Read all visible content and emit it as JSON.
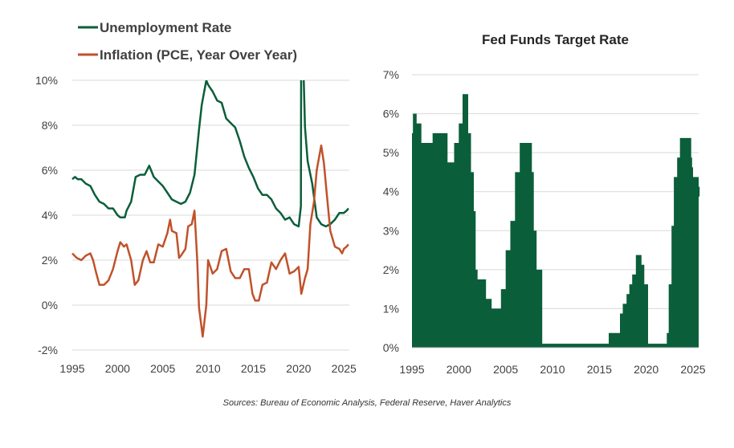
{
  "source_note": "Sources: Bureau of Economic Analysis, Federal Reserve, Haver Analytics",
  "chart_data": [
    {
      "type": "line",
      "title": "",
      "xlabel": "",
      "ylabel": "",
      "xlim": [
        1995,
        2025.6
      ],
      "ylim": [
        -2,
        10
      ],
      "x_ticks": [
        "1995",
        "2000",
        "2005",
        "2010",
        "2015",
        "2020",
        "2025"
      ],
      "y_ticks": [
        "-2%",
        "0%",
        "2%",
        "4%",
        "6%",
        "8%",
        "10%"
      ],
      "legend_position": "top-left",
      "colors": {
        "unemployment": "#0b5e3a",
        "inflation": "#c0522b"
      },
      "series": [
        {
          "name": "Unemployment Rate",
          "key": "unemployment",
          "points": [
            [
              1995.0,
              5.6
            ],
            [
              1995.3,
              5.7
            ],
            [
              1995.6,
              5.6
            ],
            [
              1996.0,
              5.6
            ],
            [
              1996.5,
              5.4
            ],
            [
              1997.0,
              5.3
            ],
            [
              1997.5,
              4.9
            ],
            [
              1998.0,
              4.6
            ],
            [
              1998.5,
              4.5
            ],
            [
              1999.0,
              4.3
            ],
            [
              1999.5,
              4.3
            ],
            [
              2000.0,
              4.0
            ],
            [
              2000.3,
              3.9
            ],
            [
              2000.8,
              3.9
            ],
            [
              2001.0,
              4.2
            ],
            [
              2001.5,
              4.6
            ],
            [
              2002.0,
              5.7
            ],
            [
              2002.5,
              5.8
            ],
            [
              2003.0,
              5.8
            ],
            [
              2003.5,
              6.2
            ],
            [
              2004.0,
              5.7
            ],
            [
              2004.5,
              5.5
            ],
            [
              2005.0,
              5.3
            ],
            [
              2005.5,
              5.0
            ],
            [
              2006.0,
              4.7
            ],
            [
              2006.5,
              4.6
            ],
            [
              2007.0,
              4.5
            ],
            [
              2007.5,
              4.6
            ],
            [
              2008.0,
              5.0
            ],
            [
              2008.5,
              5.8
            ],
            [
              2009.0,
              7.8
            ],
            [
              2009.3,
              8.9
            ],
            [
              2009.8,
              10.0
            ],
            [
              2010.0,
              9.8
            ],
            [
              2010.5,
              9.5
            ],
            [
              2011.0,
              9.1
            ],
            [
              2011.5,
              9.0
            ],
            [
              2012.0,
              8.3
            ],
            [
              2012.5,
              8.1
            ],
            [
              2013.0,
              7.9
            ],
            [
              2013.5,
              7.3
            ],
            [
              2014.0,
              6.6
            ],
            [
              2014.5,
              6.1
            ],
            [
              2015.0,
              5.7
            ],
            [
              2015.5,
              5.2
            ],
            [
              2016.0,
              4.9
            ],
            [
              2016.5,
              4.9
            ],
            [
              2017.0,
              4.7
            ],
            [
              2017.5,
              4.3
            ],
            [
              2018.0,
              4.1
            ],
            [
              2018.5,
              3.8
            ],
            [
              2019.0,
              3.9
            ],
            [
              2019.5,
              3.6
            ],
            [
              2020.0,
              3.5
            ],
            [
              2020.25,
              4.4
            ],
            [
              2020.3,
              14.7
            ],
            [
              2020.5,
              11.0
            ],
            [
              2020.7,
              7.9
            ],
            [
              2021.0,
              6.4
            ],
            [
              2021.5,
              5.4
            ],
            [
              2022.0,
              3.9
            ],
            [
              2022.5,
              3.6
            ],
            [
              2023.0,
              3.5
            ],
            [
              2023.5,
              3.6
            ],
            [
              2024.0,
              3.8
            ],
            [
              2024.5,
              4.1
            ],
            [
              2025.0,
              4.1
            ],
            [
              2025.3,
              4.2
            ],
            [
              2025.5,
              4.3
            ]
          ]
        },
        {
          "name": "Inflation (PCE, Year Over Year)",
          "key": "inflation",
          "points": [
            [
              1995.0,
              2.3
            ],
            [
              1995.5,
              2.1
            ],
            [
              1996.0,
              2.0
            ],
            [
              1996.5,
              2.2
            ],
            [
              1997.0,
              2.3
            ],
            [
              1997.3,
              2.0
            ],
            [
              1997.6,
              1.5
            ],
            [
              1998.0,
              0.9
            ],
            [
              1998.5,
              0.9
            ],
            [
              1999.0,
              1.1
            ],
            [
              1999.5,
              1.6
            ],
            [
              2000.0,
              2.4
            ],
            [
              2000.3,
              2.8
            ],
            [
              2000.7,
              2.6
            ],
            [
              2001.0,
              2.7
            ],
            [
              2001.5,
              2.0
            ],
            [
              2001.9,
              0.9
            ],
            [
              2002.3,
              1.1
            ],
            [
              2002.8,
              2.0
            ],
            [
              2003.2,
              2.4
            ],
            [
              2003.6,
              1.9
            ],
            [
              2004.0,
              1.9
            ],
            [
              2004.5,
              2.7
            ],
            [
              2005.0,
              2.6
            ],
            [
              2005.5,
              3.2
            ],
            [
              2005.8,
              3.8
            ],
            [
              2006.0,
              3.3
            ],
            [
              2006.5,
              3.2
            ],
            [
              2006.8,
              2.1
            ],
            [
              2007.0,
              2.2
            ],
            [
              2007.5,
              2.5
            ],
            [
              2007.8,
              3.5
            ],
            [
              2008.2,
              3.6
            ],
            [
              2008.5,
              4.2
            ],
            [
              2008.8,
              2.0
            ],
            [
              2009.0,
              -0.1
            ],
            [
              2009.4,
              -1.4
            ],
            [
              2009.8,
              0.0
            ],
            [
              2010.0,
              2.0
            ],
            [
              2010.5,
              1.4
            ],
            [
              2011.0,
              1.6
            ],
            [
              2011.5,
              2.4
            ],
            [
              2012.0,
              2.5
            ],
            [
              2012.5,
              1.5
            ],
            [
              2013.0,
              1.2
            ],
            [
              2013.5,
              1.2
            ],
            [
              2014.0,
              1.6
            ],
            [
              2014.5,
              1.6
            ],
            [
              2014.9,
              0.5
            ],
            [
              2015.2,
              0.2
            ],
            [
              2015.6,
              0.2
            ],
            [
              2016.0,
              0.9
            ],
            [
              2016.5,
              1.0
            ],
            [
              2017.0,
              1.9
            ],
            [
              2017.5,
              1.6
            ],
            [
              2018.0,
              2.0
            ],
            [
              2018.5,
              2.3
            ],
            [
              2019.0,
              1.4
            ],
            [
              2019.5,
              1.5
            ],
            [
              2020.0,
              1.7
            ],
            [
              2020.3,
              0.5
            ],
            [
              2020.7,
              1.2
            ],
            [
              2021.0,
              1.6
            ],
            [
              2021.3,
              3.6
            ],
            [
              2021.7,
              4.6
            ],
            [
              2022.0,
              6.0
            ],
            [
              2022.5,
              7.1
            ],
            [
              2022.8,
              6.3
            ],
            [
              2023.0,
              5.4
            ],
            [
              2023.5,
              3.3
            ],
            [
              2024.0,
              2.6
            ],
            [
              2024.5,
              2.5
            ],
            [
              2024.8,
              2.3
            ],
            [
              2025.0,
              2.5
            ],
            [
              2025.3,
              2.6
            ],
            [
              2025.5,
              2.7
            ]
          ]
        }
      ]
    },
    {
      "type": "area",
      "title": "Fed Funds Target Rate",
      "xlabel": "",
      "ylabel": "",
      "xlim": [
        1995,
        2025.6
      ],
      "ylim": [
        0,
        7
      ],
      "x_ticks": [
        "1995",
        "2000",
        "2005",
        "2010",
        "2015",
        "2020",
        "2025"
      ],
      "y_ticks": [
        "0%",
        "1%",
        "2%",
        "3%",
        "4%",
        "5%",
        "6%",
        "7%"
      ],
      "color": "#0b5e3a",
      "series": [
        {
          "points": [
            [
              1995.0,
              5.5
            ],
            [
              1995.1,
              6.0
            ],
            [
              1995.5,
              5.75
            ],
            [
              1996.0,
              5.25
            ],
            [
              1997.2,
              5.5
            ],
            [
              1998.8,
              4.75
            ],
            [
              1999.5,
              5.25
            ],
            [
              2000.0,
              5.75
            ],
            [
              2000.4,
              6.5
            ],
            [
              2001.0,
              5.5
            ],
            [
              2001.3,
              4.5
            ],
            [
              2001.6,
              3.5
            ],
            [
              2001.8,
              2.0
            ],
            [
              2002.0,
              1.75
            ],
            [
              2002.9,
              1.25
            ],
            [
              2003.5,
              1.0
            ],
            [
              2004.5,
              1.5
            ],
            [
              2005.0,
              2.5
            ],
            [
              2005.5,
              3.25
            ],
            [
              2006.0,
              4.5
            ],
            [
              2006.5,
              5.25
            ],
            [
              2007.6,
              5.25
            ],
            [
              2007.8,
              4.5
            ],
            [
              2008.0,
              3.0
            ],
            [
              2008.3,
              2.0
            ],
            [
              2008.9,
              0.1
            ],
            [
              2015.9,
              0.1
            ],
            [
              2016.0,
              0.375
            ],
            [
              2016.9,
              0.375
            ],
            [
              2017.2,
              0.875
            ],
            [
              2017.5,
              1.125
            ],
            [
              2017.9,
              1.375
            ],
            [
              2018.2,
              1.625
            ],
            [
              2018.5,
              1.875
            ],
            [
              2018.9,
              2.375
            ],
            [
              2019.5,
              2.125
            ],
            [
              2019.8,
              1.625
            ],
            [
              2020.2,
              0.1
            ],
            [
              2022.2,
              0.375
            ],
            [
              2022.4,
              1.625
            ],
            [
              2022.7,
              3.125
            ],
            [
              2022.95,
              4.375
            ],
            [
              2023.3,
              4.875
            ],
            [
              2023.6,
              5.375
            ],
            [
              2024.7,
              5.375
            ],
            [
              2024.8,
              4.875
            ],
            [
              2024.9,
              4.625
            ],
            [
              2025.0,
              4.375
            ],
            [
              2025.6,
              4.125
            ],
            [
              2025.7,
              3.875
            ]
          ]
        }
      ]
    }
  ]
}
